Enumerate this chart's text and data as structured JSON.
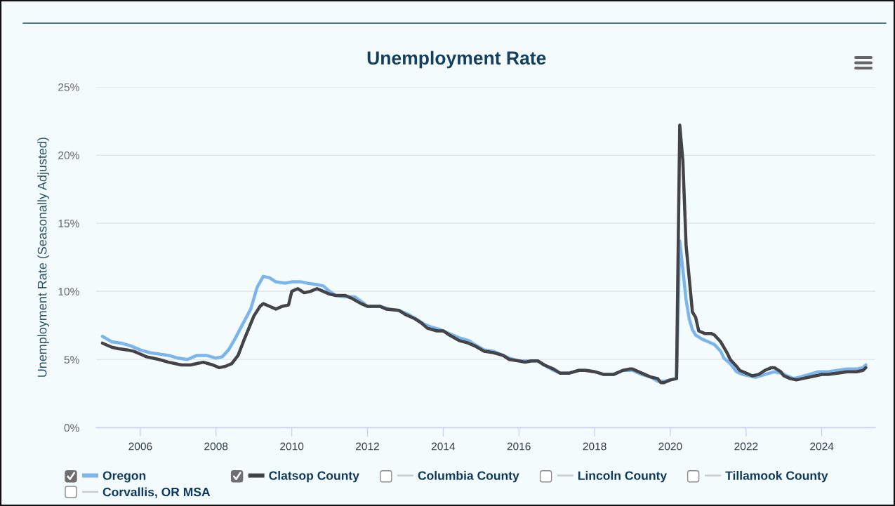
{
  "chart_data": {
    "type": "line",
    "title": "Unemployment Rate",
    "ylabel": "Unemployment Rate (Seasonally Adjusted)",
    "xlim": [
      "2004-11",
      "2025-06"
    ],
    "xticks": [
      "2006",
      "2008",
      "2010",
      "2012",
      "2014",
      "2016",
      "2018",
      "2020",
      "2022",
      "2024"
    ],
    "ylim": [
      0,
      25
    ],
    "yticks": [
      {
        "value": 0,
        "label": "0%"
      },
      {
        "value": 5,
        "label": "5%"
      },
      {
        "value": 10,
        "label": "10%"
      },
      {
        "value": 15,
        "label": "15%"
      },
      {
        "value": 20,
        "label": "20%"
      },
      {
        "value": 25,
        "label": "25%"
      }
    ],
    "grid": "y",
    "legend": "bottom",
    "series": [
      {
        "name": "Oregon",
        "color": "#7cb5ec",
        "x": [
          "2005-01",
          "2005-04",
          "2005-07",
          "2005-10",
          "2006-01",
          "2006-04",
          "2006-07",
          "2006-10",
          "2007-01",
          "2007-04",
          "2007-07",
          "2007-10",
          "2008-01",
          "2008-03",
          "2008-05",
          "2008-07",
          "2008-09",
          "2008-12",
          "2009-02",
          "2009-04",
          "2009-06",
          "2009-08",
          "2009-11",
          "2010-01",
          "2010-04",
          "2010-06",
          "2010-09",
          "2010-11",
          "2011-01",
          "2011-03",
          "2011-06",
          "2011-09",
          "2011-12",
          "2012-01",
          "2012-05",
          "2012-08",
          "2012-11",
          "2013-02",
          "2013-05",
          "2013-07",
          "2013-09",
          "2013-12",
          "2014-03",
          "2014-06",
          "2014-09",
          "2014-11",
          "2015-02",
          "2015-05",
          "2015-08",
          "2015-10",
          "2016-01",
          "2016-03",
          "2016-05",
          "2016-07",
          "2016-09",
          "2016-12",
          "2017-02",
          "2017-05",
          "2017-08",
          "2017-11",
          "2018-01",
          "2018-04",
          "2018-07",
          "2018-10",
          "2019-01",
          "2019-04",
          "2019-07",
          "2019-09",
          "2019-11",
          "2020-01",
          "2020-03",
          "2020-04",
          "2020-05",
          "2020-06",
          "2020-07",
          "2020-08",
          "2020-09",
          "2020-11",
          "2021-01",
          "2021-03",
          "2021-05",
          "2021-06",
          "2021-08",
          "2021-09",
          "2021-10",
          "2021-12",
          "2022-02",
          "2022-04",
          "2022-07",
          "2022-10",
          "2022-12",
          "2023-02",
          "2023-04",
          "2023-06",
          "2023-09",
          "2023-12",
          "2024-03",
          "2024-06",
          "2024-09",
          "2024-12",
          "2025-02",
          "2025-03"
        ],
        "values": [
          6.7,
          6.3,
          6.2,
          6.0,
          5.7,
          5.5,
          5.4,
          5.3,
          5.1,
          5.0,
          5.3,
          5.3,
          5.1,
          5.2,
          5.7,
          6.5,
          7.4,
          8.7,
          10.3,
          11.1,
          11.0,
          10.7,
          10.6,
          10.7,
          10.7,
          10.6,
          10.5,
          10.4,
          10.0,
          9.7,
          9.6,
          9.6,
          9.1,
          8.9,
          8.9,
          8.7,
          8.6,
          8.3,
          7.9,
          7.6,
          7.4,
          7.2,
          6.9,
          6.6,
          6.4,
          6.1,
          5.7,
          5.6,
          5.3,
          5.1,
          4.9,
          4.9,
          4.9,
          4.9,
          4.6,
          4.2,
          4.0,
          4.0,
          4.2,
          4.2,
          4.1,
          3.9,
          3.9,
          4.2,
          4.2,
          3.9,
          3.7,
          3.4,
          3.4,
          3.5,
          3.6,
          13.7,
          11.6,
          9.4,
          8.0,
          7.2,
          6.8,
          6.5,
          6.3,
          6.1,
          5.6,
          5.1,
          4.7,
          4.4,
          4.1,
          3.9,
          3.8,
          3.7,
          3.9,
          4.1,
          4.0,
          3.8,
          3.6,
          3.7,
          3.9,
          4.1,
          4.1,
          4.2,
          4.3,
          4.3,
          4.4,
          4.6
        ]
      },
      {
        "name": "Clatsop County",
        "color": "#434348",
        "x": [
          "2005-01",
          "2005-04",
          "2005-06",
          "2005-09",
          "2005-11",
          "2006-01",
          "2006-03",
          "2006-05",
          "2006-07",
          "2006-10",
          "2006-12",
          "2007-02",
          "2007-05",
          "2007-07",
          "2007-09",
          "2007-12",
          "2008-02",
          "2008-04",
          "2008-06",
          "2008-08",
          "2008-10",
          "2009-01",
          "2009-03",
          "2009-04",
          "2009-06",
          "2009-08",
          "2009-10",
          "2009-12",
          "2010-01",
          "2010-03",
          "2010-05",
          "2010-07",
          "2010-09",
          "2010-11",
          "2011-01",
          "2011-03",
          "2011-06",
          "2011-08",
          "2011-11",
          "2012-01",
          "2012-05",
          "2012-07",
          "2012-11",
          "2013-01",
          "2013-04",
          "2013-06",
          "2013-08",
          "2013-11",
          "2014-01",
          "2014-03",
          "2014-06",
          "2014-09",
          "2014-11",
          "2015-02",
          "2015-05",
          "2015-08",
          "2015-10",
          "2016-01",
          "2016-03",
          "2016-05",
          "2016-07",
          "2016-09",
          "2016-12",
          "2017-02",
          "2017-05",
          "2017-08",
          "2017-10",
          "2018-01",
          "2018-04",
          "2018-07",
          "2018-10",
          "2018-12",
          "2019-01",
          "2019-05",
          "2019-07",
          "2019-09",
          "2019-10",
          "2019-11",
          "2020-01",
          "2020-03",
          "2020-04",
          "2020-05",
          "2020-06",
          "2020-08",
          "2020-09",
          "2020-10",
          "2020-12",
          "2021-02",
          "2021-03",
          "2021-05",
          "2021-07",
          "2021-08",
          "2021-10",
          "2021-11",
          "2022-01",
          "2022-03",
          "2022-05",
          "2022-07",
          "2022-09",
          "2022-10",
          "2022-12",
          "2023-01",
          "2023-03",
          "2023-05",
          "2023-07",
          "2023-09",
          "2023-11",
          "2024-01",
          "2024-03",
          "2024-06",
          "2024-09",
          "2024-12",
          "2025-02",
          "2025-03"
        ],
        "values": [
          6.2,
          5.9,
          5.8,
          5.7,
          5.6,
          5.4,
          5.2,
          5.1,
          5.0,
          4.8,
          4.7,
          4.6,
          4.6,
          4.7,
          4.8,
          4.6,
          4.4,
          4.5,
          4.7,
          5.3,
          6.5,
          8.2,
          8.9,
          9.1,
          8.9,
          8.7,
          8.9,
          9.0,
          10.0,
          10.2,
          9.9,
          10.0,
          10.2,
          10.0,
          9.8,
          9.7,
          9.7,
          9.5,
          9.1,
          8.9,
          8.9,
          8.7,
          8.6,
          8.3,
          8.0,
          7.7,
          7.3,
          7.1,
          7.1,
          6.8,
          6.4,
          6.2,
          6.0,
          5.6,
          5.5,
          5.3,
          5.0,
          4.9,
          4.8,
          4.9,
          4.9,
          4.6,
          4.3,
          4.0,
          4.0,
          4.2,
          4.2,
          4.1,
          3.9,
          3.9,
          4.2,
          4.3,
          4.3,
          3.9,
          3.7,
          3.6,
          3.3,
          3.3,
          3.5,
          3.6,
          22.2,
          19.6,
          13.4,
          8.5,
          8.1,
          7.1,
          6.9,
          6.9,
          6.8,
          6.3,
          5.5,
          5.0,
          4.5,
          4.2,
          4.0,
          3.8,
          3.9,
          4.2,
          4.4,
          4.4,
          4.1,
          3.8,
          3.6,
          3.5,
          3.6,
          3.7,
          3.8,
          3.9,
          3.9,
          4.0,
          4.1,
          4.1,
          4.2,
          4.4
        ]
      },
      {
        "name": "Columbia County",
        "color": "#cccccc"
      },
      {
        "name": "Lincoln County",
        "color": "#cccccc"
      },
      {
        "name": "Tillamook County",
        "color": "#cccccc"
      },
      {
        "name": "Corvallis, OR MSA",
        "color": "#cccccc"
      }
    ]
  }
}
